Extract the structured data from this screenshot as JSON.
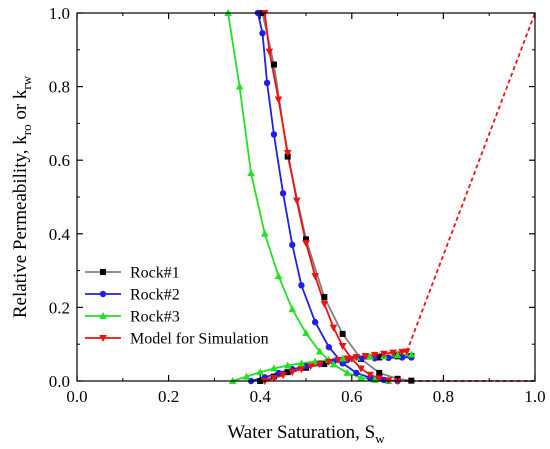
{
  "chart_data": {
    "type": "line",
    "xlabel": {
      "main": "Water Saturation, S",
      "sub": "w"
    },
    "ylabel": {
      "main": "Relative Permeability, k",
      "sub1": "ro",
      "mid": " or k",
      "sub2": "rw"
    },
    "xlim": [
      0.0,
      1.0
    ],
    "ylim": [
      0.0,
      1.0
    ],
    "xticks": [
      "0.0",
      "0.2",
      "0.4",
      "0.6",
      "0.8",
      "1.0"
    ],
    "yticks": [
      "0.0",
      "0.2",
      "0.4",
      "0.6",
      "0.8",
      "1.0"
    ],
    "grid": false,
    "legend": "bottom-left",
    "series": [
      {
        "name": "Rock#1",
        "color": "#808080",
        "marker": "square",
        "kro": [
          [
            0.405,
            1.0
          ],
          [
            0.43,
            0.86
          ],
          [
            0.46,
            0.61
          ],
          [
            0.5,
            0.385
          ],
          [
            0.54,
            0.228
          ],
          [
            0.58,
            0.128
          ],
          [
            0.62,
            0.06
          ],
          [
            0.66,
            0.022
          ],
          [
            0.7,
            0.006
          ],
          [
            0.73,
            0.001
          ]
        ],
        "krw": [
          [
            0.4,
            0.0
          ],
          [
            0.43,
            0.012
          ],
          [
            0.46,
            0.024
          ],
          [
            0.5,
            0.036
          ],
          [
            0.54,
            0.046
          ],
          [
            0.58,
            0.054
          ],
          [
            0.62,
            0.06
          ],
          [
            0.66,
            0.064
          ],
          [
            0.7,
            0.067
          ],
          [
            0.73,
            0.068
          ]
        ]
      },
      {
        "name": "Rock#2",
        "color": "#1f1fe6",
        "marker": "circle",
        "kro": [
          [
            0.395,
            1.0
          ],
          [
            0.405,
            0.945
          ],
          [
            0.415,
            0.81
          ],
          [
            0.43,
            0.67
          ],
          [
            0.45,
            0.51
          ],
          [
            0.47,
            0.37
          ],
          [
            0.49,
            0.26
          ],
          [
            0.52,
            0.16
          ],
          [
            0.55,
            0.092
          ],
          [
            0.58,
            0.048
          ],
          [
            0.61,
            0.022
          ],
          [
            0.64,
            0.009
          ],
          [
            0.67,
            0.003
          ],
          [
            0.7,
            0.0
          ]
        ],
        "krw": [
          [
            0.38,
            0.0
          ],
          [
            0.41,
            0.01
          ],
          [
            0.44,
            0.022
          ],
          [
            0.47,
            0.032
          ],
          [
            0.5,
            0.04
          ],
          [
            0.53,
            0.047
          ],
          [
            0.56,
            0.053
          ],
          [
            0.59,
            0.057
          ],
          [
            0.62,
            0.06
          ],
          [
            0.65,
            0.062
          ],
          [
            0.68,
            0.063
          ],
          [
            0.71,
            0.064
          ],
          [
            0.73,
            0.064
          ]
        ]
      },
      {
        "name": "Rock#3",
        "color": "#22e022",
        "marker": "triangle-up",
        "kro": [
          [
            0.33,
            1.0
          ],
          [
            0.355,
            0.8
          ],
          [
            0.38,
            0.565
          ],
          [
            0.41,
            0.4
          ],
          [
            0.44,
            0.285
          ],
          [
            0.47,
            0.195
          ],
          [
            0.5,
            0.13
          ],
          [
            0.53,
            0.08
          ],
          [
            0.56,
            0.045
          ],
          [
            0.59,
            0.022
          ],
          [
            0.62,
            0.009
          ],
          [
            0.65,
            0.003
          ],
          [
            0.68,
            0.0
          ]
        ],
        "krw": [
          [
            0.34,
            0.0
          ],
          [
            0.37,
            0.012
          ],
          [
            0.4,
            0.024
          ],
          [
            0.43,
            0.034
          ],
          [
            0.46,
            0.042
          ],
          [
            0.49,
            0.048
          ],
          [
            0.52,
            0.053
          ],
          [
            0.55,
            0.057
          ],
          [
            0.58,
            0.061
          ],
          [
            0.61,
            0.064
          ],
          [
            0.64,
            0.066
          ],
          [
            0.67,
            0.068
          ],
          [
            0.7,
            0.07
          ],
          [
            0.73,
            0.072
          ]
        ]
      },
      {
        "name": "Model for Simulation",
        "color": "#ee1111",
        "marker": "triangle-down",
        "kro": [
          [
            0.41,
            1.0
          ],
          [
            0.42,
            0.895
          ],
          [
            0.44,
            0.765
          ],
          [
            0.46,
            0.62
          ],
          [
            0.48,
            0.49
          ],
          [
            0.5,
            0.375
          ],
          [
            0.52,
            0.285
          ],
          [
            0.54,
            0.21
          ],
          [
            0.56,
            0.145
          ],
          [
            0.58,
            0.095
          ],
          [
            0.6,
            0.06
          ],
          [
            0.62,
            0.034
          ],
          [
            0.64,
            0.017
          ],
          [
            0.66,
            0.007
          ],
          [
            0.68,
            0.002
          ],
          [
            0.7,
            0.0
          ]
        ],
        "krw": [
          [
            0.41,
            0.0
          ],
          [
            0.43,
            0.008
          ],
          [
            0.45,
            0.016
          ],
          [
            0.47,
            0.024
          ],
          [
            0.49,
            0.032
          ],
          [
            0.51,
            0.04
          ],
          [
            0.53,
            0.046
          ],
          [
            0.55,
            0.052
          ],
          [
            0.57,
            0.057
          ],
          [
            0.59,
            0.061
          ],
          [
            0.61,
            0.065
          ],
          [
            0.63,
            0.068
          ],
          [
            0.65,
            0.071
          ],
          [
            0.67,
            0.074
          ],
          [
            0.69,
            0.077
          ],
          [
            0.71,
            0.079
          ],
          [
            0.72,
            0.08
          ]
        ],
        "kro_extension": [
          [
            0.7,
            0.0
          ],
          [
            1.0,
            0.0
          ]
        ],
        "krw_extension": [
          [
            0.72,
            0.08
          ],
          [
            1.0,
            1.0
          ]
        ]
      }
    ]
  }
}
